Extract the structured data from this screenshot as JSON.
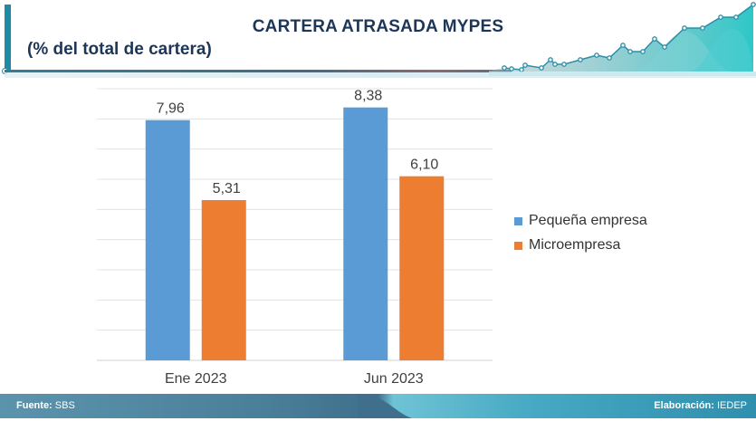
{
  "header": {
    "title": "CARTERA ATRASADA MYPES",
    "subtitle": "(% del total de cartera)",
    "accent_color": "#1e8aa3",
    "title_color": "#1d3557"
  },
  "footer": {
    "source_label": "Fuente:",
    "source_value": "SBS",
    "credit_label": "Elaboración:",
    "credit_value": "IEDEP"
  },
  "chart_data": {
    "type": "bar",
    "title": "CARTERA ATRASADA MYPES",
    "subtitle": "(% del total de cartera)",
    "xlabel": "",
    "ylabel": "",
    "categories": [
      "Ene 2023",
      "Jun 2023"
    ],
    "series": [
      {
        "name": "Pequeña empresa",
        "color": "#5b9bd5",
        "values": [
          7.96,
          8.38
        ],
        "labels": [
          "7,96",
          "8,38"
        ]
      },
      {
        "name": "Microempresa",
        "color": "#ed7d31",
        "values": [
          5.31,
          6.1
        ],
        "labels": [
          "5,31",
          "6,10"
        ]
      }
    ],
    "ylim": [
      0,
      9
    ],
    "grid": true,
    "gridline_step": 1,
    "y_axis_visible": false,
    "legend_position": "right"
  }
}
